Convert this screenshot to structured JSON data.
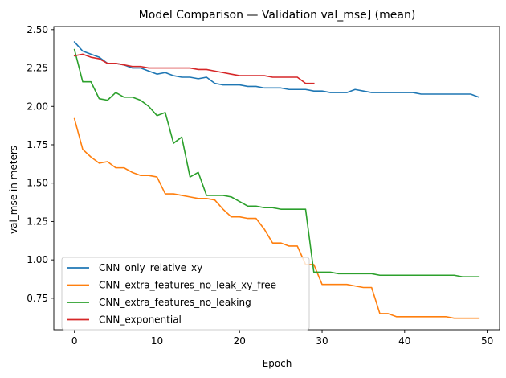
{
  "chart_data": {
    "type": "line",
    "title": "Model Comparison — Validation val_mse] (mean)",
    "xlabel": "Epoch",
    "ylabel": "val_mse in meters",
    "xlim": [
      -2.5,
      51.5
    ],
    "ylim": [
      0.545,
      2.52
    ],
    "xticks": [
      0,
      10,
      20,
      30,
      40,
      50
    ],
    "yticks": [
      0.75,
      1.0,
      1.25,
      1.5,
      1.75,
      2.0,
      2.25,
      2.5
    ],
    "ytick_labels": [
      "0.75",
      "1.00",
      "1.25",
      "1.50",
      "1.75",
      "2.00",
      "2.25",
      "2.50"
    ],
    "grid": false,
    "legend": "lower-left",
    "series": [
      {
        "name": "CNN_only_relative_xy",
        "color": "#1f77b4",
        "x": [
          0,
          1,
          2,
          3,
          4,
          5,
          6,
          7,
          8,
          9,
          10,
          11,
          12,
          13,
          14,
          15,
          16,
          17,
          18,
          19,
          20,
          21,
          22,
          23,
          24,
          25,
          26,
          27,
          28,
          29,
          30,
          31,
          32,
          33,
          34,
          35,
          36,
          37,
          38,
          39,
          40,
          41,
          42,
          43,
          44,
          45,
          46,
          47,
          48,
          49
        ],
        "y": [
          2.42,
          2.36,
          2.34,
          2.32,
          2.28,
          2.28,
          2.27,
          2.25,
          2.25,
          2.23,
          2.21,
          2.22,
          2.2,
          2.19,
          2.19,
          2.18,
          2.19,
          2.15,
          2.14,
          2.14,
          2.14,
          2.13,
          2.13,
          2.12,
          2.12,
          2.12,
          2.11,
          2.11,
          2.11,
          2.1,
          2.1,
          2.09,
          2.09,
          2.09,
          2.11,
          2.1,
          2.09,
          2.09,
          2.09,
          2.09,
          2.09,
          2.09,
          2.08,
          2.08,
          2.08,
          2.08,
          2.08,
          2.08,
          2.08,
          2.06
        ]
      },
      {
        "name": "CNN_extra_features_no_leak_xy_free",
        "color": "#ff7f0e",
        "x": [
          0,
          1,
          2,
          3,
          4,
          5,
          6,
          7,
          8,
          9,
          10,
          11,
          12,
          13,
          14,
          15,
          16,
          17,
          18,
          19,
          20,
          21,
          22,
          23,
          24,
          25,
          26,
          27,
          28,
          29,
          30,
          31,
          32,
          33,
          34,
          35,
          36,
          37,
          38,
          39,
          40,
          41,
          42,
          43,
          44,
          45,
          46,
          47,
          48,
          49
        ],
        "y": [
          1.92,
          1.72,
          1.67,
          1.63,
          1.64,
          1.6,
          1.6,
          1.57,
          1.55,
          1.55,
          1.54,
          1.43,
          1.43,
          1.42,
          1.41,
          1.4,
          1.4,
          1.39,
          1.33,
          1.28,
          1.28,
          1.27,
          1.27,
          1.2,
          1.11,
          1.11,
          1.09,
          1.09,
          0.97,
          0.97,
          0.84,
          0.84,
          0.84,
          0.84,
          0.83,
          0.82,
          0.82,
          0.65,
          0.65,
          0.63,
          0.63,
          0.63,
          0.63,
          0.63,
          0.63,
          0.63,
          0.62,
          0.62,
          0.62,
          0.62
        ]
      },
      {
        "name": "CNN_extra_features_no_leaking",
        "color": "#2ca02c",
        "x": [
          0,
          1,
          2,
          3,
          4,
          5,
          6,
          7,
          8,
          9,
          10,
          11,
          12,
          13,
          14,
          15,
          16,
          17,
          18,
          19,
          20,
          21,
          22,
          23,
          24,
          25,
          26,
          27,
          28,
          29,
          30,
          31,
          32,
          33,
          34,
          35,
          36,
          37,
          38,
          39,
          40,
          41,
          42,
          43,
          44,
          45,
          46,
          47,
          48,
          49
        ],
        "y": [
          2.37,
          2.16,
          2.16,
          2.05,
          2.04,
          2.09,
          2.06,
          2.06,
          2.04,
          2.0,
          1.94,
          1.96,
          1.76,
          1.8,
          1.54,
          1.57,
          1.42,
          1.42,
          1.42,
          1.41,
          1.38,
          1.35,
          1.35,
          1.34,
          1.34,
          1.33,
          1.33,
          1.33,
          1.33,
          0.92,
          0.92,
          0.92,
          0.91,
          0.91,
          0.91,
          0.91,
          0.91,
          0.9,
          0.9,
          0.9,
          0.9,
          0.9,
          0.9,
          0.9,
          0.9,
          0.9,
          0.9,
          0.89,
          0.89,
          0.89
        ]
      },
      {
        "name": "CNN_exponential",
        "color": "#d62728",
        "x": [
          0,
          1,
          2,
          3,
          4,
          5,
          6,
          7,
          8,
          9,
          10,
          11,
          12,
          13,
          14,
          15,
          16,
          17,
          18,
          19,
          20,
          21,
          22,
          23,
          24,
          25,
          26,
          27,
          28,
          29
        ],
        "y": [
          2.33,
          2.34,
          2.32,
          2.31,
          2.28,
          2.28,
          2.27,
          2.26,
          2.26,
          2.25,
          2.25,
          2.25,
          2.25,
          2.25,
          2.25,
          2.24,
          2.24,
          2.23,
          2.22,
          2.21,
          2.2,
          2.2,
          2.2,
          2.2,
          2.19,
          2.19,
          2.19,
          2.19,
          2.15,
          2.15
        ]
      }
    ]
  }
}
